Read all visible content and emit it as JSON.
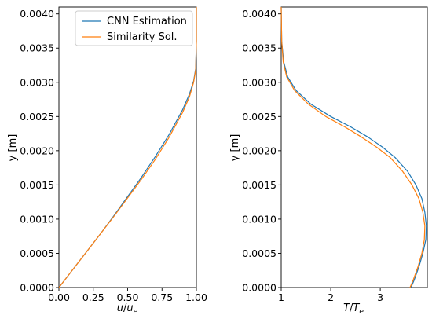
{
  "chart_data": [
    {
      "type": "line",
      "xlabel": "u/u_e",
      "ylabel": "y [m]",
      "xlim": [
        0.0,
        1.0
      ],
      "ylim": [
        0.0,
        0.0041
      ],
      "xticks": [
        "0.00",
        "0.25",
        "0.50",
        "0.75",
        "1.00"
      ],
      "yticks": [
        "0.0000",
        "0.0005",
        "0.0010",
        "0.0015",
        "0.0020",
        "0.0025",
        "0.0030",
        "0.0035",
        "0.0040"
      ],
      "grid": false,
      "legend": "top-right",
      "colors": {
        "CNN Estimation": "#1f77b4",
        "Similarity Sol.": "#ff7f0e"
      },
      "series": [
        {
          "name": "CNN Estimation",
          "x": [
            0.0,
            0.1,
            0.2,
            0.3,
            0.4,
            0.5,
            0.6,
            0.7,
            0.8,
            0.9,
            0.95,
            0.98,
            0.995,
            1.0,
            1.0
          ],
          "y": [
            0.0,
            0.00026,
            0.00052,
            0.00078,
            0.00105,
            0.00133,
            0.00161,
            0.00191,
            0.00223,
            0.0026,
            0.00283,
            0.00302,
            0.0032,
            0.0036,
            0.0041
          ]
        },
        {
          "name": "Similarity Sol.",
          "x": [
            0.0,
            0.1,
            0.2,
            0.3,
            0.4,
            0.5,
            0.6,
            0.7,
            0.8,
            0.9,
            0.95,
            0.98,
            0.995,
            1.0,
            1.0
          ],
          "y": [
            0.0,
            0.00026,
            0.00052,
            0.00078,
            0.00104,
            0.00131,
            0.00158,
            0.00187,
            0.00219,
            0.00256,
            0.00279,
            0.003,
            0.00318,
            0.0036,
            0.0041
          ]
        }
      ]
    },
    {
      "type": "line",
      "xlabel": "T/T_e",
      "ylabel": "y [m]",
      "xlim": [
        1.0,
        3.95
      ],
      "ylim": [
        0.0,
        0.0041
      ],
      "xticks": [
        "1",
        "2",
        "3"
      ],
      "yticks": [
        "0.0000",
        "0.0005",
        "0.0010",
        "0.0015",
        "0.0020",
        "0.0025",
        "0.0030",
        "0.0035",
        "0.0040"
      ],
      "grid": false,
      "colors": {
        "CNN Estimation": "#1f77b4",
        "Similarity Sol.": "#ff7f0e"
      },
      "series": [
        {
          "name": "CNN Estimation",
          "x": [
            3.62,
            3.68,
            3.78,
            3.86,
            3.92,
            3.93,
            3.9,
            3.84,
            3.72,
            3.55,
            3.3,
            3.05,
            2.75,
            2.4,
            2.0,
            1.6,
            1.3,
            1.13,
            1.05,
            1.01,
            1.0
          ],
          "y": [
            0.0,
            0.0001,
            0.0003,
            0.0005,
            0.0007,
            0.0009,
            0.0011,
            0.0013,
            0.0015,
            0.0017,
            0.0019,
            0.00205,
            0.0022,
            0.00235,
            0.0025,
            0.00268,
            0.00288,
            0.00308,
            0.0033,
            0.0036,
            0.0041
          ]
        },
        {
          "name": "Similarity Sol.",
          "x": [
            3.6,
            3.66,
            3.76,
            3.84,
            3.89,
            3.9,
            3.86,
            3.78,
            3.64,
            3.45,
            3.2,
            2.93,
            2.62,
            2.28,
            1.9,
            1.55,
            1.27,
            1.11,
            1.04,
            1.01,
            1.0
          ],
          "y": [
            0.0,
            0.0001,
            0.0003,
            0.0005,
            0.0007,
            0.0009,
            0.0011,
            0.0013,
            0.0015,
            0.0017,
            0.0019,
            0.00205,
            0.0022,
            0.00235,
            0.0025,
            0.00268,
            0.00288,
            0.00308,
            0.0033,
            0.0036,
            0.0041
          ]
        }
      ]
    }
  ],
  "legend": {
    "items": [
      {
        "label": "CNN Estimation",
        "color": "#1f77b4"
      },
      {
        "label": "Similarity Sol.",
        "color": "#ff7f0e"
      }
    ]
  }
}
